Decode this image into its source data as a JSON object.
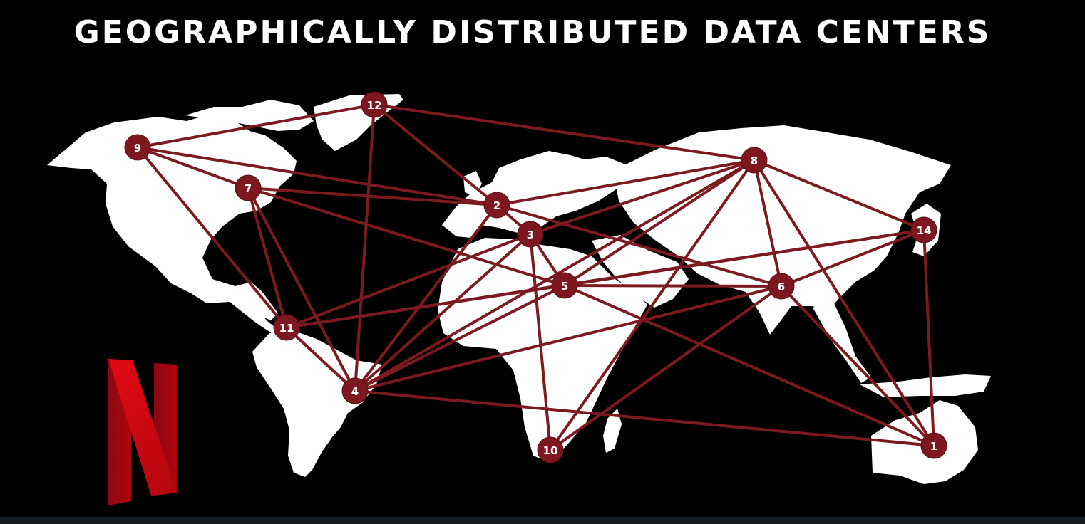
{
  "title": "GEOGRAPHICALLY DISTRIBUTED DATA CENTERS",
  "logo": {
    "name": "netflix-n-logo",
    "text": "N",
    "colors": [
      "#b1060f",
      "#e50914",
      "#8a0710"
    ]
  },
  "colors": {
    "background": "#000000",
    "land": "#ffffff",
    "link": "#7c1a1f",
    "node": "#7d1720",
    "node_text": "#ffffff"
  },
  "nodes": [
    {
      "id": "1",
      "label": "1"
    },
    {
      "id": "2",
      "label": "2"
    },
    {
      "id": "3",
      "label": "3"
    },
    {
      "id": "4",
      "label": "4"
    },
    {
      "id": "5",
      "label": "5"
    },
    {
      "id": "6",
      "label": "6"
    },
    {
      "id": "7",
      "label": "7"
    },
    {
      "id": "8",
      "label": "8"
    },
    {
      "id": "9",
      "label": "9"
    },
    {
      "id": "10",
      "label": "10"
    },
    {
      "id": "11",
      "label": "11"
    },
    {
      "id": "12",
      "label": "12"
    },
    {
      "id": "14",
      "label": "14"
    }
  ],
  "edges": [
    [
      "9",
      "12"
    ],
    [
      "9",
      "7"
    ],
    [
      "9",
      "11"
    ],
    [
      "9",
      "2"
    ],
    [
      "12",
      "2"
    ],
    [
      "12",
      "8"
    ],
    [
      "12",
      "4"
    ],
    [
      "7",
      "2"
    ],
    [
      "7",
      "5"
    ],
    [
      "7",
      "11"
    ],
    [
      "7",
      "4"
    ],
    [
      "2",
      "8"
    ],
    [
      "2",
      "3"
    ],
    [
      "2",
      "4"
    ],
    [
      "2",
      "6"
    ],
    [
      "3",
      "11"
    ],
    [
      "3",
      "4"
    ],
    [
      "3",
      "10"
    ],
    [
      "3",
      "5"
    ],
    [
      "5",
      "11"
    ],
    [
      "5",
      "4"
    ],
    [
      "5",
      "6"
    ],
    [
      "5",
      "14"
    ],
    [
      "5",
      "1"
    ],
    [
      "5",
      "8"
    ],
    [
      "8",
      "3"
    ],
    [
      "8",
      "6"
    ],
    [
      "8",
      "14"
    ],
    [
      "8",
      "1"
    ],
    [
      "8",
      "10"
    ],
    [
      "6",
      "14"
    ],
    [
      "6",
      "1"
    ],
    [
      "6",
      "10"
    ],
    [
      "6",
      "4"
    ],
    [
      "14",
      "11"
    ],
    [
      "14",
      "1"
    ],
    [
      "11",
      "4"
    ],
    [
      "4",
      "1"
    ],
    [
      "4",
      "8"
    ]
  ]
}
